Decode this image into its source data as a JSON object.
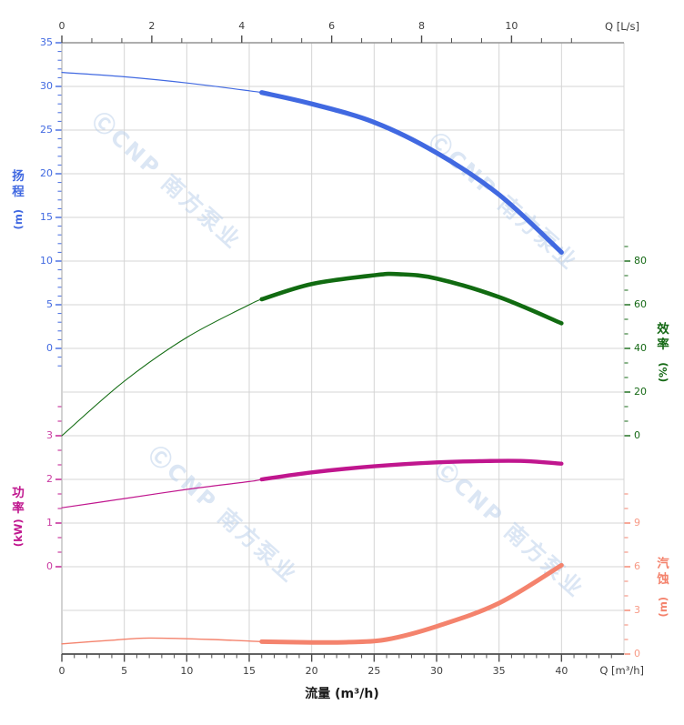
{
  "watermark": {
    "text": "ⒸCNP 南方泵业",
    "color": "#b7cde9"
  },
  "corner_labels": {
    "top_right": "Q [L/s]",
    "bottom_right": "Q [m³/h]"
  },
  "chart_data": {
    "type": "line",
    "title": "",
    "xlabel": "流量 (m³/h)",
    "grid": true,
    "x_axis_bottom": {
      "label": "流量 (m³/h)",
      "unit": "m³/h",
      "range": [
        0,
        45
      ],
      "tick_labels": [
        0,
        5,
        10,
        15,
        20,
        25,
        30,
        35,
        40
      ],
      "minor_step": 1,
      "color": "#3d3d3d"
    },
    "x_axis_top": {
      "label": "Q [L/s]",
      "unit": "L/s",
      "range": [
        0,
        12.5
      ],
      "tick_labels": [
        0,
        2,
        4,
        6,
        8,
        10
      ],
      "minor_divisions": 3,
      "color": "#3d3d3d",
      "lps_per_m3h": 0.27778
    },
    "y_axes": {
      "head": {
        "label": "扬程",
        "unit": "(m)",
        "color": "#4169e1",
        "tick_color": "#4169e1",
        "tick_labels": [
          35,
          30,
          25,
          20,
          15,
          10,
          5,
          0
        ],
        "minor_step": 1
      },
      "efficiency": {
        "label": "效率",
        "unit": "(%)",
        "color": "#156915",
        "tick_color": "#156915",
        "tick_labels": [
          80,
          60,
          40,
          20,
          0
        ],
        "minor_divisions": 3
      },
      "power": {
        "label": "功率",
        "unit": "(kW)",
        "color": "#c0168e",
        "tick_color": "#ca3ba2",
        "tick_labels": [
          3,
          2,
          1,
          0
        ],
        "minor_divisions": 3
      },
      "npsh": {
        "label": "汽蚀",
        "unit": "(m)",
        "color": "#f4836d",
        "tick_color": "#f79a86",
        "tick_labels": [
          9,
          6,
          3,
          0
        ],
        "minor_step": 1
      }
    },
    "duty_range": {
      "from_q": 16,
      "to_q": 40
    },
    "series": [
      {
        "name": "head",
        "axis": "head",
        "color": "#4169e1",
        "points": [
          [
            0,
            31.6
          ],
          [
            5,
            31.1
          ],
          [
            10,
            30.4
          ],
          [
            15,
            29.5
          ],
          [
            16,
            29.3
          ],
          [
            20,
            28.0
          ],
          [
            25,
            25.9
          ],
          [
            30,
            22.4
          ],
          [
            35,
            17.6
          ],
          [
            40,
            11.0
          ]
        ]
      },
      {
        "name": "efficiency",
        "axis": "efficiency",
        "color": "#116b11",
        "points": [
          [
            0,
            0
          ],
          [
            5,
            25
          ],
          [
            10,
            45
          ],
          [
            15,
            60
          ],
          [
            16,
            62.5
          ],
          [
            20,
            69.5
          ],
          [
            25,
            73.5
          ],
          [
            27,
            74
          ],
          [
            30,
            72
          ],
          [
            35,
            63.5
          ],
          [
            40,
            51.5
          ]
        ]
      },
      {
        "name": "power",
        "axis": "power",
        "color": "#c0168e",
        "points": [
          [
            0,
            1.35
          ],
          [
            5,
            1.56
          ],
          [
            10,
            1.77
          ],
          [
            15,
            1.95
          ],
          [
            16,
            2.0
          ],
          [
            20,
            2.16
          ],
          [
            25,
            2.3
          ],
          [
            30,
            2.39
          ],
          [
            34,
            2.42
          ],
          [
            37,
            2.42
          ],
          [
            40,
            2.36
          ]
        ]
      },
      {
        "name": "npsh",
        "axis": "npsh",
        "color": "#f4836d",
        "points": [
          [
            0,
            0.7
          ],
          [
            4,
            0.95
          ],
          [
            7,
            1.1
          ],
          [
            12,
            1.0
          ],
          [
            16,
            0.85
          ],
          [
            20,
            0.8
          ],
          [
            23,
            0.82
          ],
          [
            26,
            1.0
          ],
          [
            30,
            1.9
          ],
          [
            35,
            3.5
          ],
          [
            40,
            6.1
          ]
        ]
      }
    ]
  }
}
